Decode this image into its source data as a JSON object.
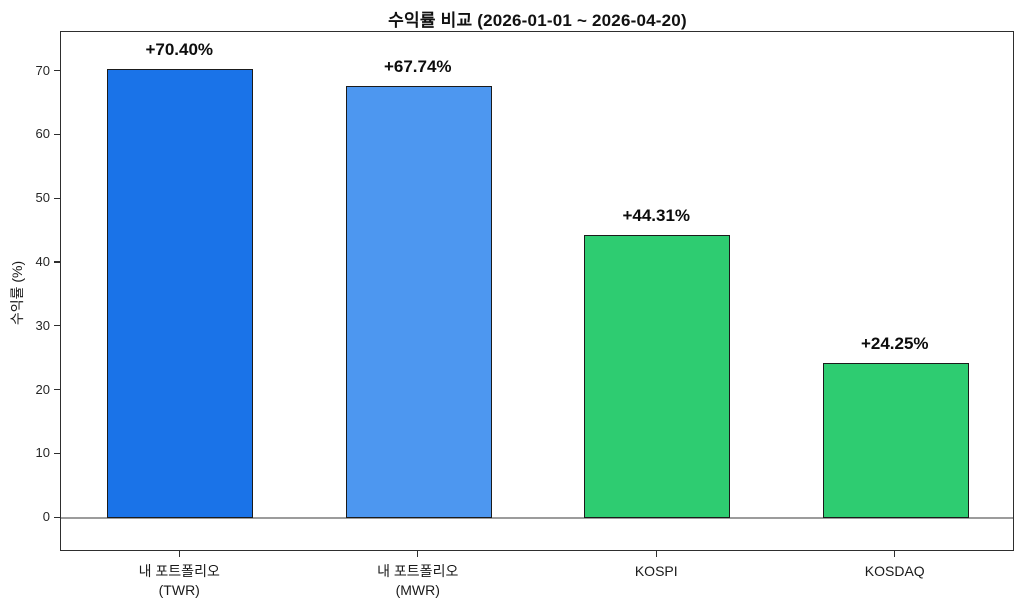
{
  "chart_data": {
    "type": "bar",
    "title": "수익률 비교 (2026-01-01 ~ 2026-04-20)",
    "ylabel": "수익률 (%)",
    "xlabel": "",
    "categories": [
      "내 포트폴리오\n(TWR)",
      "내 포트폴리오\n(MWR)",
      "KOSPI",
      "KOSDAQ"
    ],
    "values": [
      70.4,
      67.74,
      44.31,
      24.25
    ],
    "bar_labels": [
      "+70.40%",
      "+67.74%",
      "+44.31%",
      "+24.25%"
    ],
    "bar_colors": [
      "#1a73e8",
      "#4d97f0",
      "#2ecc71",
      "#2ecc71"
    ],
    "bar_edge_color": "#1b1b1b",
    "ylim": [
      -5.3,
      76.2
    ],
    "yticks": [
      0,
      10,
      20,
      30,
      40,
      50,
      60,
      70
    ],
    "zero_line_color": "#9c9c9c",
    "grid": false,
    "legend": null
  }
}
